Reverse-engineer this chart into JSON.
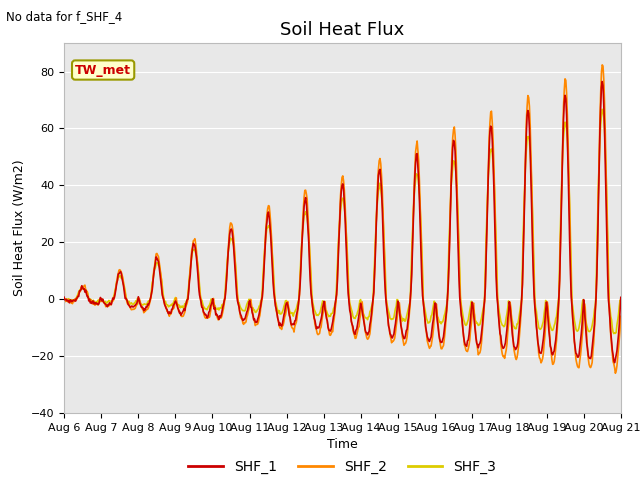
{
  "title": "Soil Heat Flux",
  "subtitle": "No data for f_SHF_4",
  "ylabel": "Soil Heat Flux (W/m2)",
  "xlabel": "Time",
  "legend_label": "TW_met",
  "series_labels": [
    "SHF_1",
    "SHF_2",
    "SHF_3"
  ],
  "series_colors": [
    "#cc0000",
    "#ff8800",
    "#ddcc00"
  ],
  "ylim": [
    -40,
    90
  ],
  "yticks": [
    -40,
    -20,
    0,
    20,
    40,
    60,
    80
  ],
  "xtick_labels": [
    "Aug 6",
    "Aug 7",
    "Aug 8",
    "Aug 9",
    "Aug 10",
    "Aug 11",
    "Aug 12",
    "Aug 13",
    "Aug 14",
    "Aug 15",
    "Aug 16",
    "Aug 17",
    "Aug 18",
    "Aug 19",
    "Aug 20",
    "Aug 21"
  ],
  "n_days": 15,
  "bg_color": "#e8e8e8",
  "fig_bg_color": "#ffffff",
  "title_fontsize": 13,
  "label_fontsize": 9,
  "tick_fontsize": 8,
  "legend_bg": "#ffffcc",
  "legend_border": "#999900",
  "grid_color": "#ffffff",
  "linewidth": 1.2
}
